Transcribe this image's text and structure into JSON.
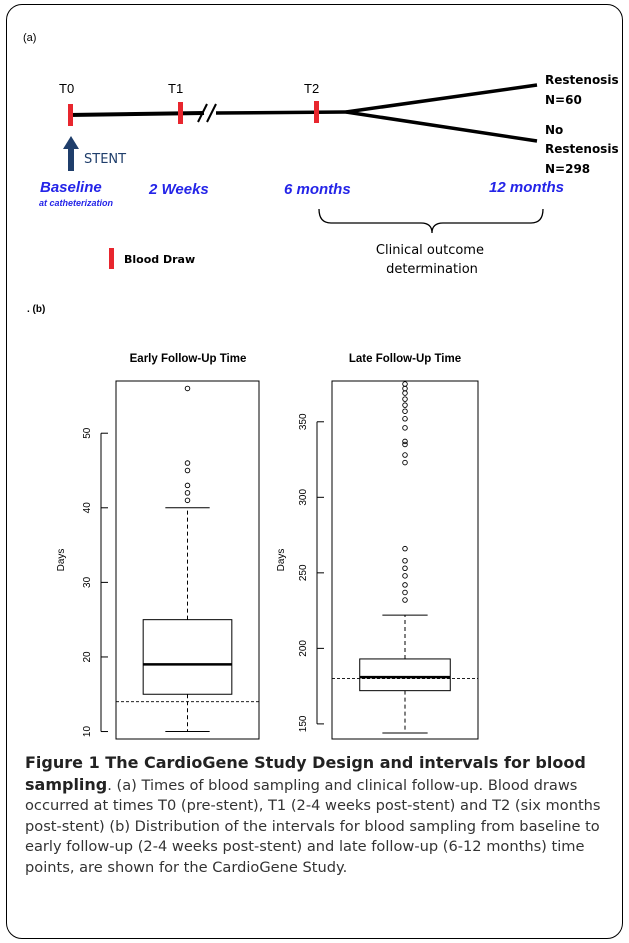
{
  "panel_a": {
    "label": "(a)",
    "timepoints": [
      "T0",
      "T1",
      "T2"
    ],
    "stent_label": "STENT",
    "baseline_label": "Baseline",
    "baseline_sub": "at catheterization",
    "period_labels": [
      "2 Weeks",
      "6 months",
      "12 months"
    ],
    "outcomes": {
      "restenosis": [
        "Restenosis",
        "N=60"
      ],
      "no_restenosis": [
        "No",
        "Restenosis",
        "N=298"
      ]
    },
    "clinical_outcome": [
      "Clinical outcome",
      "determination"
    ],
    "legend_blood_draw": "Blood Draw",
    "colors": {
      "blood_draw": "#e8262e",
      "stent_arrow": "#1f3e6b",
      "period_text": "#2424e8"
    }
  },
  "panel_b": {
    "label": ". (b)"
  },
  "chart_data": [
    {
      "type": "box",
      "title": "Early Follow-Up Time",
      "xlabel": "",
      "ylabel": "Days",
      "ylim": [
        9,
        57
      ],
      "yticks": [
        10,
        20,
        30,
        40,
        50
      ],
      "whisker_low": 10,
      "q1": 15,
      "median": 19,
      "q3": 25,
      "whisker_high": 40,
      "outliers": [
        41,
        42,
        43,
        45,
        46,
        56
      ],
      "reference_line": 14
    },
    {
      "type": "box",
      "title": "Late Follow-Up Time",
      "xlabel": "",
      "ylabel": "Days",
      "ylim": [
        140,
        377
      ],
      "yticks": [
        150,
        200,
        250,
        300,
        350
      ],
      "whisker_low": 144,
      "q1": 172,
      "median": 181,
      "q3": 193,
      "whisker_high": 222,
      "outliers": [
        232,
        237,
        242,
        248,
        253,
        258,
        266,
        323,
        328,
        335,
        337,
        346,
        352,
        357,
        361,
        365,
        369,
        372,
        375
      ],
      "reference_line": 180
    }
  ],
  "caption": {
    "title": "Figure 1 The CardioGene Study Design and intervals for blood sampling",
    "text": ". (a) Times of blood sampling and clinical follow-up. Blood draws occurred at times T0 (pre-stent), T1 (2-4 weeks post-stent) and T2 (six months post-stent) (b) Distribution of the intervals for blood sampling from baseline to early follow-up (2-4 weeks post-stent) and late follow-up (6-12 months) time points, are shown for the CardioGene Study."
  }
}
